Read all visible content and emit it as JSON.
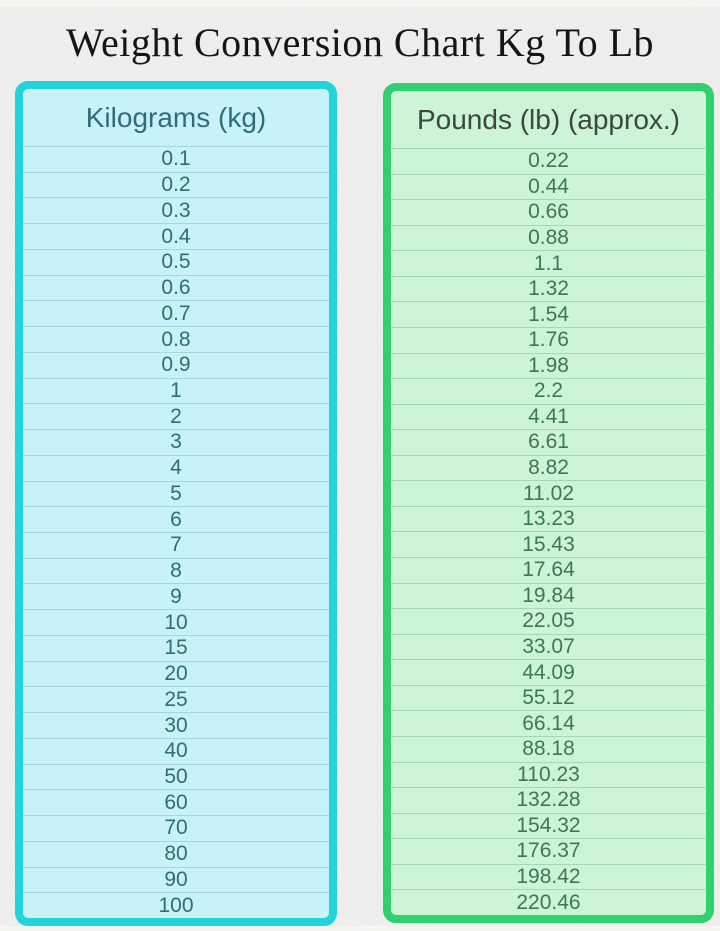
{
  "page": {
    "title": "Weight Conversion Chart Kg To Lb"
  },
  "colors": {
    "background": "#e0dedc",
    "edge_highlight": "#f7f6f4",
    "title_text": "#171513",
    "kg_border": "#23d3da",
    "kg_bg": "#c7f3f8",
    "kg_text": "#2f6d78",
    "kg_separator": "#a6d6dc",
    "lb_border": "#32cf70",
    "lb_bg": "#ccf4d7",
    "lb_header_text": "#3f463f",
    "lb_text": "#3e7850",
    "lb_separator": "#a6d7b2"
  },
  "table": {
    "kg_header": "Kilograms (kg)",
    "lb_header": "Pounds (lb) (approx.)",
    "rows": [
      {
        "kg": "0.1",
        "lb": "0.22"
      },
      {
        "kg": "0.2",
        "lb": "0.44"
      },
      {
        "kg": "0.3",
        "lb": "0.66"
      },
      {
        "kg": "0.4",
        "lb": "0.88"
      },
      {
        "kg": "0.5",
        "lb": "1.1"
      },
      {
        "kg": "0.6",
        "lb": "1.32"
      },
      {
        "kg": "0.7",
        "lb": "1.54"
      },
      {
        "kg": "0.8",
        "lb": "1.76"
      },
      {
        "kg": "0.9",
        "lb": "1.98"
      },
      {
        "kg": "1",
        "lb": "2.2"
      },
      {
        "kg": "2",
        "lb": "4.41"
      },
      {
        "kg": "3",
        "lb": "6.61"
      },
      {
        "kg": "4",
        "lb": "8.82"
      },
      {
        "kg": "5",
        "lb": "11.02"
      },
      {
        "kg": "6",
        "lb": "13.23"
      },
      {
        "kg": "7",
        "lb": "15.43"
      },
      {
        "kg": "8",
        "lb": "17.64"
      },
      {
        "kg": "9",
        "lb": "19.84"
      },
      {
        "kg": "10",
        "lb": "22.05"
      },
      {
        "kg": "15",
        "lb": "33.07"
      },
      {
        "kg": "20",
        "lb": "44.09"
      },
      {
        "kg": "25",
        "lb": "55.12"
      },
      {
        "kg": "30",
        "lb": "66.14"
      },
      {
        "kg": "40",
        "lb": "88.18"
      },
      {
        "kg": "50",
        "lb": "110.23"
      },
      {
        "kg": "60",
        "lb": "132.28"
      },
      {
        "kg": "70",
        "lb": "154.32"
      },
      {
        "kg": "80",
        "lb": "176.37"
      },
      {
        "kg": "90",
        "lb": "198.42"
      },
      {
        "kg": "100",
        "lb": "220.46"
      }
    ]
  },
  "chart_data": {
    "type": "table",
    "title": "Weight Conversion Chart Kg To Lb",
    "columns": [
      "Kilograms (kg)",
      "Pounds (lb) (approx.)"
    ],
    "rows": [
      [
        0.1,
        0.22
      ],
      [
        0.2,
        0.44
      ],
      [
        0.3,
        0.66
      ],
      [
        0.4,
        0.88
      ],
      [
        0.5,
        1.1
      ],
      [
        0.6,
        1.32
      ],
      [
        0.7,
        1.54
      ],
      [
        0.8,
        1.76
      ],
      [
        0.9,
        1.98
      ],
      [
        1,
        2.2
      ],
      [
        2,
        4.41
      ],
      [
        3,
        6.61
      ],
      [
        4,
        8.82
      ],
      [
        5,
        11.02
      ],
      [
        6,
        13.23
      ],
      [
        7,
        15.43
      ],
      [
        8,
        17.64
      ],
      [
        9,
        19.84
      ],
      [
        10,
        22.05
      ],
      [
        15,
        33.07
      ],
      [
        20,
        44.09
      ],
      [
        25,
        55.12
      ],
      [
        30,
        66.14
      ],
      [
        40,
        88.18
      ],
      [
        50,
        110.23
      ],
      [
        60,
        132.28
      ],
      [
        70,
        154.32
      ],
      [
        80,
        176.37
      ],
      [
        90,
        198.42
      ],
      [
        100,
        220.46
      ]
    ]
  }
}
